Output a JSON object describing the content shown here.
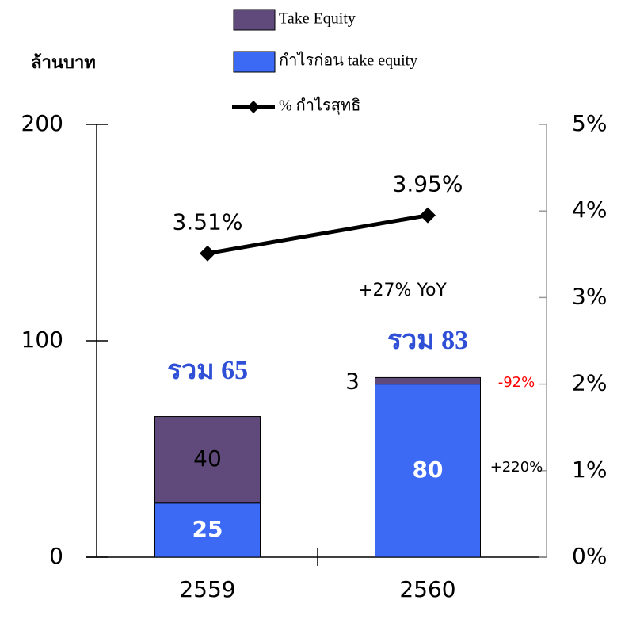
{
  "chart_data": {
    "type": "bar",
    "categories": [
      "2559",
      "2560"
    ],
    "series": [
      {
        "name": "Take Equity",
        "color": "#604a7b",
        "values": [
          40,
          3
        ]
      },
      {
        "name": "กำไรก่อน take equity",
        "color": "#3d6af5",
        "values": [
          25,
          80
        ]
      },
      {
        "name": "% กำไรสุทธิ",
        "type": "line",
        "axis": "y2",
        "color": "#000000",
        "values": [
          3.51,
          3.95
        ],
        "value_labels": [
          "3.51%",
          "3.95%"
        ]
      }
    ],
    "ylim": [
      0,
      200
    ],
    "yticks": [
      0,
      100,
      200
    ],
    "y2lim": [
      0,
      5
    ],
    "y2ticks": [
      {
        "value": 0,
        "label": "0%"
      },
      {
        "value": 1,
        "label": "1%"
      },
      {
        "value": 2,
        "label": "2%"
      },
      {
        "value": 3,
        "label": "3%"
      },
      {
        "value": 4,
        "label": "4%"
      },
      {
        "value": 5,
        "label": "5%"
      }
    ],
    "annotations": [
      {
        "text": "ล้านบาท",
        "color": "#000000"
      },
      {
        "text": "รวม 65",
        "color": "#2f4fd6"
      },
      {
        "text": "รวม 83",
        "color": "#2f4fd6"
      },
      {
        "text": "+27% YoY",
        "color": "#000000"
      },
      {
        "text": "-92%",
        "color": "#ff0000"
      },
      {
        "text": "+220%",
        "color": "#000000"
      }
    ]
  }
}
